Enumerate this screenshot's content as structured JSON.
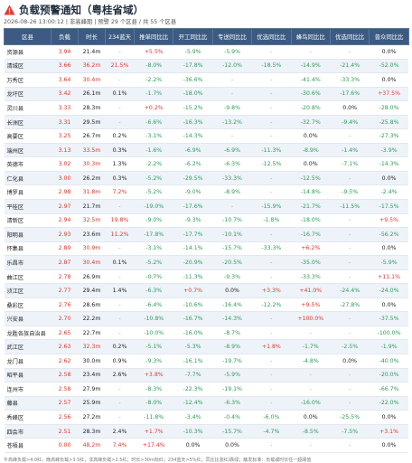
{
  "header": {
    "title": "负载预警通知（粤桂省域）",
    "subtitle": "2026-08-26 13:00:12 | 非高峰期 | 预警 29 个区县 / 共 55 个区县"
  },
  "table": {
    "columns": [
      "区县",
      "负载",
      "时长",
      "234蓝天",
      "推单同比比",
      "开工同比比",
      "专送同比比",
      "优选同比比",
      "蜂鸟同比比",
      "优选同比比",
      "普众同比比"
    ],
    "rows": [
      [
        "资源县",
        "3.94",
        "21.4m",
        "-",
        "+5.5%",
        "-5.9%",
        "-5.9%",
        "-",
        "-",
        "-",
        "0.0%"
      ],
      [
        "清城区",
        "3.66",
        "36.2m",
        "21.5%",
        "-8.0%",
        "-17.8%",
        "-12.0%",
        "-18.5%",
        "-14.9%",
        "-21.4%",
        "-52.0%"
      ],
      [
        "万秀区",
        "3.64",
        "30.4m",
        "-",
        "-2.2%",
        "-36.6%",
        "-",
        "-",
        "-41.4%",
        "-33.3%",
        "0.0%"
      ],
      [
        "龙圩区",
        "3.42",
        "26.1m",
        "0.1%",
        "-1.7%",
        "-18.0%",
        "-",
        "-",
        "-30.6%",
        "-17.6%",
        "+37.5%"
      ],
      [
        "灵川县",
        "3.33",
        "28.3m",
        "-",
        "+0.2%",
        "-15.2%",
        "-9.8%",
        "-",
        "-20.8%",
        "0.0%",
        "-28.0%"
      ],
      [
        "长洲区",
        "3.31",
        "29.5m",
        "-",
        "-6.6%",
        "-16.3%",
        "-13.2%",
        "-",
        "-32.7%",
        "-9.4%",
        "-25.8%"
      ],
      [
        "高要区",
        "3.25",
        "26.7m",
        "0.2%",
        "-3.1%",
        "-14.3%",
        "-",
        "-",
        "0.0%",
        "-",
        "-27.3%"
      ],
      [
        "端州区",
        "3.13",
        "33.5m",
        "0.3%",
        "-1.6%",
        "-6.9%",
        "-6.9%",
        "-11.3%",
        "-8.9%",
        "-1.4%",
        "-3.9%"
      ],
      [
        "英德市",
        "3.02",
        "30.3m",
        "1.3%",
        "-2.2%",
        "-6.2%",
        "-6.3%",
        "-12.5%",
        "0.0%",
        "-7.1%",
        "-14.3%"
      ],
      [
        "仁化县",
        "3.00",
        "26.2m",
        "0.3%",
        "-5.2%",
        "-29.5%",
        "-33.3%",
        "-",
        "-12.5%",
        "-",
        "0.0%"
      ],
      [
        "博罗县",
        "2.98",
        "31.8m",
        "7.2%",
        "-5.2%",
        "-9.0%",
        "-8.9%",
        "-",
        "-14.8%",
        "-9.5%",
        "-2.4%"
      ],
      [
        "平桂区",
        "2.97",
        "21.7m",
        "-",
        "-19.0%",
        "-17.6%",
        "-",
        "-15.9%",
        "-21.7%",
        "-11.5%",
        "-17.5%"
      ],
      [
        "清新区",
        "2.94",
        "32.5m",
        "19.8%",
        "-9.0%",
        "-9.3%",
        "-10.7%",
        "-1.8%",
        "-18.0%",
        "-",
        "+9.5%"
      ],
      [
        "阳明县",
        "2.93",
        "23.6m",
        "11.2%",
        "-17.8%",
        "-17.7%",
        "-10.1%",
        "-",
        "-16.7%",
        "-",
        "-56.2%"
      ],
      [
        "怀集县",
        "2.89",
        "30.9m",
        "-",
        "-3.1%",
        "-14.1%",
        "-15.7%",
        "-33.3%",
        "+6.2%",
        "-",
        "0.0%"
      ],
      [
        "乐昌市",
        "2.87",
        "30.4m",
        "0.1%",
        "-5.2%",
        "-20.9%",
        "-20.5%",
        "-",
        "-35.0%",
        "-",
        "-5.9%"
      ],
      [
        "曲江区",
        "2.78",
        "26.9m",
        "-",
        "-0.7%",
        "-11.3%",
        "-9.3%",
        "-",
        "-33.3%",
        "-",
        "+11.1%"
      ],
      [
        "浈江区",
        "2.77",
        "29.4m",
        "1.4%",
        "-6.3%",
        "+0.7%",
        "0.0%",
        "+3.3%",
        "+41.0%",
        "-24.4%",
        "-24.0%"
      ],
      [
        "桑彩区",
        "2.76",
        "28.6m",
        "-",
        "-6.4%",
        "-10.6%",
        "-16.4%",
        "-12.2%",
        "+9.5%",
        "-27.8%",
        "0.0%"
      ],
      [
        "兴安县",
        "2.70",
        "22.2m",
        "-",
        "-10.8%",
        "-16.7%",
        "-14.3%",
        "-",
        "+100.0%",
        "-",
        "-37.5%"
      ],
      [
        "龙胜各族自治县",
        "2.65",
        "22.7m",
        "-",
        "-10.0%",
        "-16.0%",
        "-8.7%",
        "-",
        "-",
        "-",
        "-100.0%"
      ],
      [
        "武江区",
        "2.63",
        "32.3m",
        "0.2%",
        "-5.1%",
        "-5.3%",
        "-8.9%",
        "+1.8%",
        "-1.7%",
        "-2.5%",
        "-1.9%"
      ],
      [
        "龙门县",
        "2.62",
        "30.0m",
        "0.9%",
        "-9.3%",
        "-16.1%",
        "-19.7%",
        "-",
        "-4.8%",
        "0.0%",
        "-40.0%"
      ],
      [
        "昭平县",
        "2.58",
        "23.4m",
        "2.6%",
        "+3.8%",
        "-7.7%",
        "-5.9%",
        "-",
        "-",
        "-",
        "-20.0%"
      ],
      [
        "连州市",
        "2.58",
        "27.9m",
        "-",
        "-8.3%",
        "-22.3%",
        "-19.1%",
        "-",
        "-",
        "-",
        "-66.7%"
      ],
      [
        "藤县",
        "2.57",
        "25.9m",
        "-",
        "-8.0%",
        "-12.4%",
        "-6.3%",
        "-",
        "-16.0%",
        "-",
        "-22.0%"
      ],
      [
        "秀峰区",
        "2.56",
        "27.2m",
        "-",
        "-11.8%",
        "-3.4%",
        "-0.4%",
        "-6.0%",
        "0.0%",
        "-25.5%",
        "0.0%"
      ],
      [
        "四会市",
        "2.51",
        "28.3m",
        "2.4%",
        "+1.7%",
        "-10.3%",
        "-15.7%",
        "-4.7%",
        "-8.5%",
        "-7.5%",
        "+3.1%"
      ],
      [
        "苍梧县",
        "0.00",
        "48.2m",
        "7.4%",
        "+17.4%",
        "0.0%",
        "0.0%",
        "-",
        "-",
        "-",
        "0.0%"
      ]
    ]
  },
  "footer": "午高峰负载>4.0红，晚高峰负载>3.5红，非高峰负载>2.5红；时长>30m标红；234蓝天>5%红；同比比涨红/跌绿；触发标准：负载或时长任一超阈值"
}
